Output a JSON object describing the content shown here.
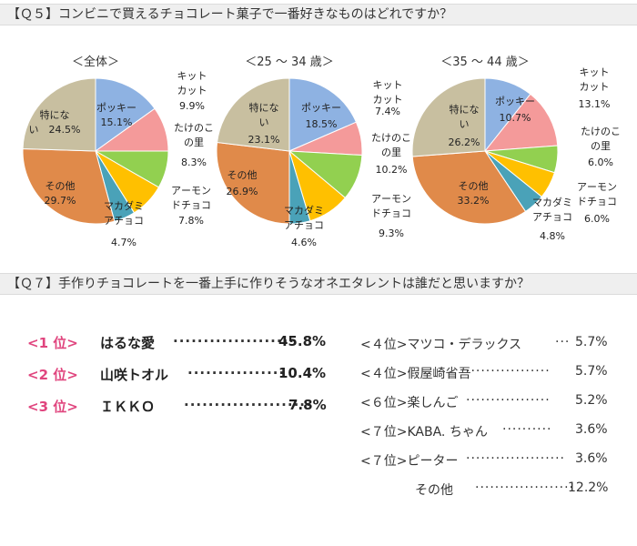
{
  "q5": {
    "title": "【Ｑ５】コンビニで買えるチョコレート菓子で一番好きなものはどれですか？"
  },
  "chart_data": [
    {
      "type": "pie",
      "title": "＜全体＞",
      "slices": [
        {
          "label": "ポッキー",
          "value": 15.1,
          "color": "#8eb2e2"
        },
        {
          "label": "キットカット",
          "value": 9.9,
          "color": "#f49a9a"
        },
        {
          "label": "たけのこの里",
          "value": 8.3,
          "color": "#92d050"
        },
        {
          "label": "アーモンドチョコ",
          "value": 7.8,
          "color": "#ffc000"
        },
        {
          "label": "マカダミアチョコ",
          "value": 4.7,
          "color": "#4aa2b8"
        },
        {
          "label": "その他",
          "value": 29.7,
          "color": "#e08a4a"
        },
        {
          "label": "特にない",
          "value": 24.5,
          "color": "#c8bfa0"
        }
      ]
    },
    {
      "type": "pie",
      "title": "＜25 ～ 34 歳＞",
      "slices": [
        {
          "label": "ポッキー",
          "value": 18.5,
          "color": "#8eb2e2"
        },
        {
          "label": "キットカット",
          "value": 7.4,
          "color": "#f49a9a"
        },
        {
          "label": "たけのこの里",
          "value": 10.2,
          "color": "#92d050"
        },
        {
          "label": "アーモンドチョコ",
          "value": 9.3,
          "color": "#ffc000"
        },
        {
          "label": "マカダミアチョコ",
          "value": 4.6,
          "color": "#4aa2b8"
        },
        {
          "label": "その他",
          "value": 26.9,
          "color": "#e08a4a"
        },
        {
          "label": "特にない",
          "value": 23.1,
          "color": "#c8bfa0"
        }
      ]
    },
    {
      "type": "pie",
      "title": "＜35 ～ 44 歳＞",
      "slices": [
        {
          "label": "ポッキー",
          "value": 10.7,
          "color": "#8eb2e2"
        },
        {
          "label": "キットカット",
          "value": 13.1,
          "color": "#f49a9a"
        },
        {
          "label": "たけのこの里",
          "value": 6.0,
          "color": "#92d050"
        },
        {
          "label": "アーモンドチョコ",
          "value": 6.0,
          "color": "#ffc000"
        },
        {
          "label": "マカダミアチョコ",
          "value": 4.8,
          "color": "#4aa2b8"
        },
        {
          "label": "その他",
          "value": 33.2,
          "color": "#e08a4a"
        },
        {
          "label": "特にない",
          "value": 26.2,
          "color": "#c8bfa0"
        }
      ]
    }
  ],
  "q7": {
    "title": "【Ｑ７】手作りチョコレートを一番上手に作りそうなオネエタレントは誰だと思いますか？",
    "top": [
      {
        "rank": "<1 位>",
        "name": "はるな愛",
        "dots": "····················",
        "pct": "45.8%"
      },
      {
        "rank": "<2 位>",
        "name": "山咲トオル",
        "dots": "················",
        "pct": "10.4%"
      },
      {
        "rank": "<3 位>",
        "name": "ＩＫＫＯ",
        "dots": "·····················",
        "pct": "7.8%"
      }
    ],
    "others": [
      {
        "rank": "<４位>",
        "name": "マツコ・デラックス",
        "dots": "···",
        "pct": "5.7%"
      },
      {
        "rank": "<４位>",
        "name": "假屋崎省吾",
        "dots": "·················",
        "pct": "5.7%"
      },
      {
        "rank": "<６位>",
        "name": "楽しんご",
        "dots": "·················",
        "pct": "5.2%"
      },
      {
        "rank": "<７位>",
        "name": "KABA. ちゃん",
        "dots": "··········",
        "pct": "3.6%"
      },
      {
        "rank": "<７位>",
        "name": "ピーター",
        "dots": "····················",
        "pct": "3.6%"
      },
      {
        "rank": "",
        "name": "その他",
        "dots": "····················",
        "pct": "12.2%"
      }
    ]
  }
}
